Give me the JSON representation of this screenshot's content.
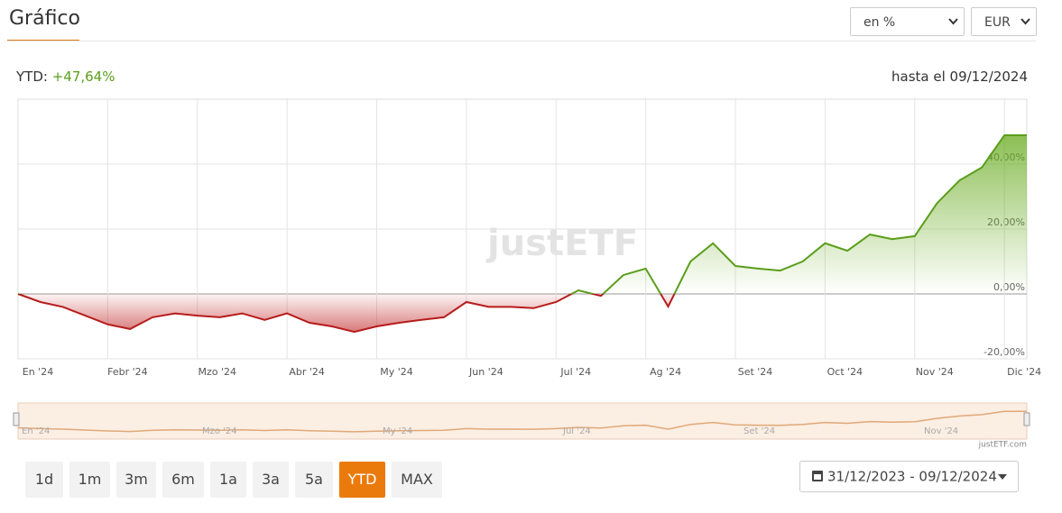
{
  "header": {
    "title": "Gráfico",
    "unit_select": "en %",
    "currency_select": "EUR"
  },
  "summary": {
    "ytd_label": "YTD:",
    "ytd_value": "+47,64%",
    "until": "hasta el 09/12/2024"
  },
  "chart_data": {
    "type": "line",
    "categories": [
      "En '24",
      null,
      null,
      null,
      "Febr '24",
      null,
      null,
      null,
      "Mzo '24",
      null,
      null,
      null,
      "Abr '24",
      null,
      null,
      null,
      "My '24",
      null,
      null,
      null,
      "Jun '24",
      null,
      null,
      null,
      "Jul '24",
      null,
      null,
      null,
      "Ag '24",
      null,
      null,
      null,
      "Set '24",
      null,
      null,
      null,
      "Oct '24",
      null,
      null,
      null,
      "Nov '24",
      null,
      null,
      null,
      "Dic '24",
      null
    ],
    "series": [
      {
        "values": [
          0,
          -2.5,
          -4,
          -6.7,
          -9.4,
          -10.8,
          -7.2,
          -6,
          -6.7,
          -7.2,
          -6,
          -8,
          -6,
          -8.9,
          -10,
          -11.7,
          -10,
          -8.9,
          -8,
          -7.2,
          -2.5,
          -4,
          -4,
          -4.4,
          -2.5,
          1.1,
          -0.6,
          5.8,
          7.8,
          -3.9,
          10,
          15.6,
          8.6,
          7.8,
          7.2,
          10,
          15.6,
          13.3,
          18.3,
          16.9,
          17.8,
          28,
          35,
          39,
          48.9,
          48.9
        ]
      }
    ],
    "color_positive": "#5a9e1a",
    "color_negative": "#b71c1c",
    "ylim": [
      -20,
      60
    ],
    "yticks": [
      {
        "value": -20,
        "label": "-20,00%"
      },
      {
        "value": 0,
        "label": "0,00%"
      },
      {
        "value": 20,
        "label": "20,00%"
      },
      {
        "value": 40,
        "label": "40,00%"
      }
    ],
    "grid": true,
    "watermark": "justETF"
  },
  "navigator": {
    "labels": [
      "En '24",
      "Mzo '24",
      "My '24",
      "Jul '24",
      "Set '24",
      "Nov '24"
    ],
    "credit": "justETF.com"
  },
  "controls": {
    "ranges": [
      "1d",
      "1m",
      "3m",
      "6m",
      "1a",
      "3a",
      "5a",
      "YTD",
      "MAX"
    ],
    "active": "YTD",
    "date_range": "31/12/2023 - 09/12/2024"
  }
}
